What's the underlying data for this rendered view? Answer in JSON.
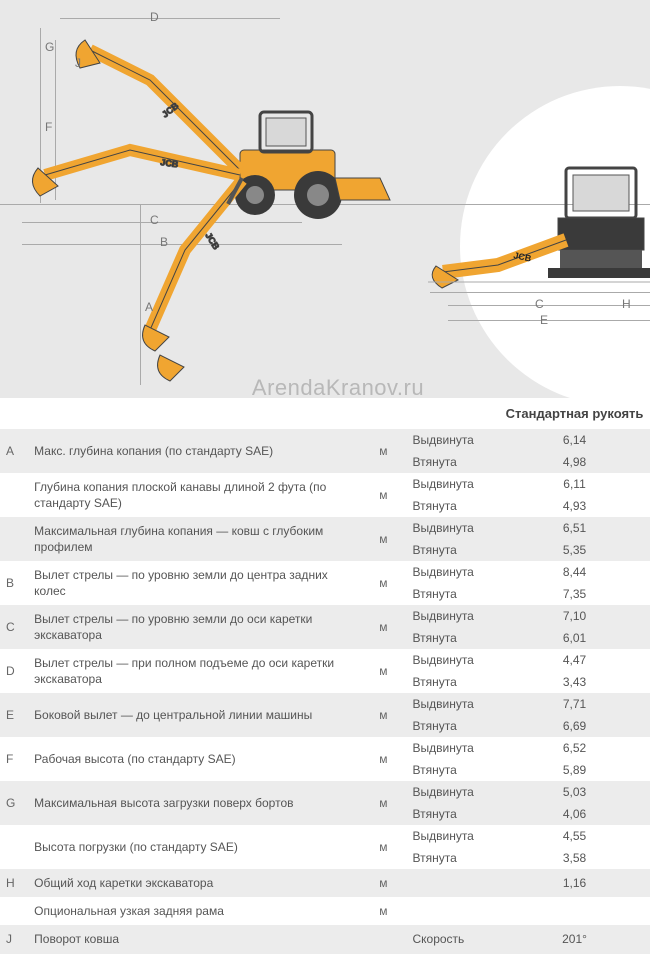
{
  "watermark": "ArendaKranov.ru",
  "header": {
    "value_column": "Стандартная рукоять"
  },
  "dim_labels": {
    "D": "D",
    "G": "G",
    "J": "J",
    "F": "F",
    "C": "C",
    "B": "B",
    "A": "A",
    "side_C": "C",
    "side_E": "E",
    "side_H": "H"
  },
  "labels": {
    "extended": "Выдвинута",
    "retracted": "Втянута",
    "speed": "Скорость",
    "unit_m": "м"
  },
  "rows": [
    {
      "letter": "A",
      "desc": "Макс. глубина копания (по стандарту SAE)",
      "unit": "м",
      "ext": "6,14",
      "ret": "4,98",
      "shade": true
    },
    {
      "letter": "",
      "desc": "Глубина копания плоской канавы длиной 2 фута (по стандарту SAE)",
      "unit": "м",
      "ext": "6,11",
      "ret": "4,93",
      "shade": false
    },
    {
      "letter": "",
      "desc": "Максимальная глубина копания — ковш с глубоким профилем",
      "unit": "м",
      "ext": "6,51",
      "ret": "5,35",
      "shade": true
    },
    {
      "letter": "B",
      "desc": "Вылет стрелы — по уровню земли до центра задних колес",
      "unit": "м",
      "ext": "8,44",
      "ret": "7,35",
      "shade": false
    },
    {
      "letter": "C",
      "desc": "Вылет стрелы — по уровню земли до оси каретки экскаватора",
      "unit": "м",
      "ext": "7,10",
      "ret": "6,01",
      "shade": true
    },
    {
      "letter": "D",
      "desc": "Вылет стрелы — при полном подъеме до оси каретки экскаватора",
      "unit": "м",
      "ext": "4,47",
      "ret": "3,43",
      "shade": false
    },
    {
      "letter": "E",
      "desc": "Боковой вылет — до центральной линии машины",
      "unit": "м",
      "ext": "7,71",
      "ret": "6,69",
      "shade": true
    },
    {
      "letter": "F",
      "desc": "Рабочая высота (по стандарту SAE)",
      "unit": "м",
      "ext": "6,52",
      "ret": "5,89",
      "shade": false
    },
    {
      "letter": "G",
      "desc": "Максимальная высота загрузки поверх бортов",
      "unit": "м",
      "ext": "5,03",
      "ret": "4,06",
      "shade": true
    },
    {
      "letter": "",
      "desc": "Высота погрузки (по стандарту SAE)",
      "unit": "м",
      "ext": "4,55",
      "ret": "3,58",
      "shade": false
    },
    {
      "letter": "H",
      "desc": "Общий ход каретки экскаватора",
      "unit": "м",
      "single": "1,16",
      "shade": true
    },
    {
      "letter": "",
      "desc": "Опциональная узкая задняя рама",
      "unit": "м",
      "single": "",
      "shade": false
    },
    {
      "letter": "J",
      "desc": "Поворот ковша",
      "unit": "",
      "state_label": "Скорость",
      "single": "201°",
      "shade": true
    }
  ],
  "colors": {
    "machine_body": "#f0a531",
    "machine_dark": "#3a3a3a",
    "diagram_bg": "#e8e8e8",
    "line": "#aaaaaa"
  }
}
